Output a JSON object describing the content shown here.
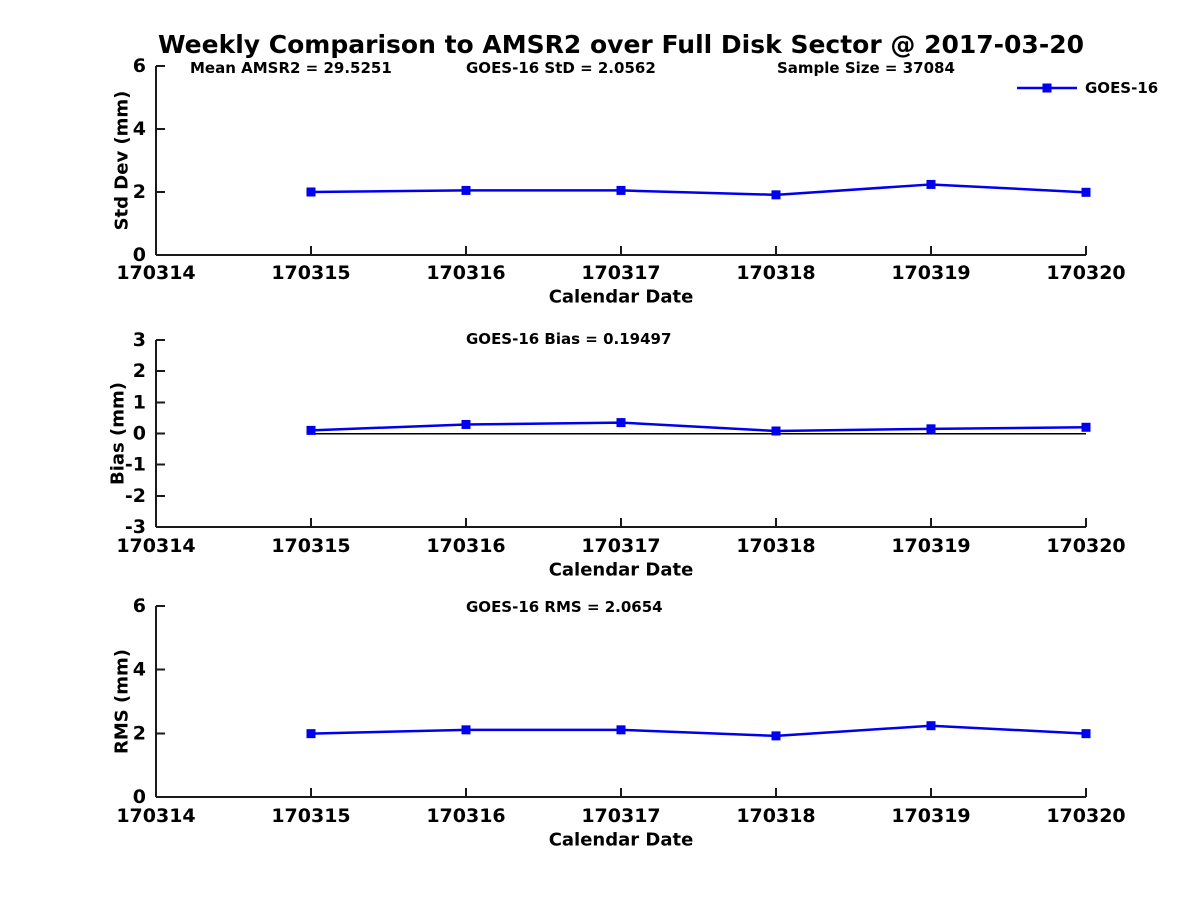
{
  "figure": {
    "title": "Weekly Comparison to AMSR2 over Full Disk Sector @ 2017-03-20",
    "background_color": "#FFFFFF",
    "line_color": "#0000EE",
    "axis_color": "#1A1A1A",
    "text_color": "#000000"
  },
  "chart_data": [
    {
      "type": "line",
      "ylabel": "Std Dev (mm)",
      "xlabel": "Calendar Date",
      "ylim": [
        0,
        6
      ],
      "yticks": [
        0,
        2,
        4,
        6
      ],
      "xtick_labels": [
        "170314",
        "170315",
        "170316",
        "170317",
        "170318",
        "170319",
        "170320"
      ],
      "x": [
        170315,
        170316,
        170317,
        170318,
        170319,
        170320
      ],
      "series": [
        {
          "name": "GOES-16",
          "color": "#0000EE",
          "marker": "square",
          "values": [
            2.0,
            2.05,
            2.05,
            1.91,
            2.24,
            1.99
          ]
        }
      ],
      "annotations": [
        "Mean AMSR2 = 29.5251",
        "GOES-16 StD = 2.0562",
        "Sample Size = 37084"
      ],
      "legend": {
        "show": true,
        "label": "GOES-16",
        "position": "northeast"
      },
      "zero_line": false,
      "grid": false
    },
    {
      "type": "line",
      "ylabel": "Bias (mm)",
      "xlabel": "Calendar Date",
      "ylim": [
        -3,
        3
      ],
      "yticks": [
        -3,
        -2,
        -1,
        0,
        1,
        2,
        3
      ],
      "xtick_labels": [
        "170314",
        "170315",
        "170316",
        "170317",
        "170318",
        "170319",
        "170320"
      ],
      "x": [
        170315,
        170316,
        170317,
        170318,
        170319,
        170320
      ],
      "series": [
        {
          "name": "GOES-16",
          "color": "#0000EE",
          "marker": "square",
          "values": [
            0.1,
            0.29,
            0.35,
            0.08,
            0.15,
            0.2
          ]
        }
      ],
      "annotations": [
        "GOES-16 Bias  = 0.19497"
      ],
      "legend": {
        "show": false
      },
      "zero_line": true,
      "grid": false
    },
    {
      "type": "line",
      "ylabel": "RMS (mm)",
      "xlabel": "Calendar Date",
      "ylim": [
        0,
        6
      ],
      "yticks": [
        0,
        2,
        4,
        6
      ],
      "xtick_labels": [
        "170314",
        "170315",
        "170316",
        "170317",
        "170318",
        "170319",
        "170320"
      ],
      "x": [
        170315,
        170316,
        170317,
        170318,
        170319,
        170320
      ],
      "series": [
        {
          "name": "GOES-16",
          "color": "#0000EE",
          "marker": "square",
          "values": [
            1.99,
            2.11,
            2.11,
            1.92,
            2.24,
            1.99
          ]
        }
      ],
      "annotations": [
        "GOES-16 RMS = 2.0654"
      ],
      "legend": {
        "show": false
      },
      "zero_line": false,
      "grid": false
    }
  ]
}
